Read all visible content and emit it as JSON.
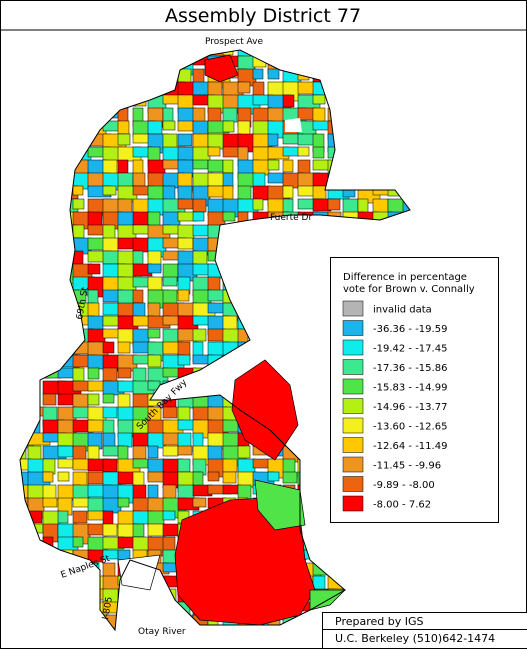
{
  "title": "Assembly District 77",
  "streets": [
    {
      "name": "Prospect Ave"
    },
    {
      "name": "Fuerte Dr"
    },
    {
      "name": "69th St"
    },
    {
      "name": "South Bay Fwy"
    },
    {
      "name": "E Naples St"
    },
    {
      "name": "I-805"
    },
    {
      "name": "Otay River"
    }
  ],
  "legend": {
    "title": [
      "Difference in percentage",
      "vote for Brown v. Connally"
    ],
    "items": [
      {
        "label": "invalid data",
        "color": "#b4b4b4"
      },
      {
        "label": "-36.36  -  -19.59",
        "color": "#1ab4ec"
      },
      {
        "label": "-19.42  -  -17.45",
        "color": "#10ecec"
      },
      {
        "label": "-17.36  -  -15.86",
        "color": "#3ce890"
      },
      {
        "label": "-15.83  -  -14.99",
        "color": "#50e448"
      },
      {
        "label": "-14.96  -  -13.77",
        "color": "#b4f014"
      },
      {
        "label": "-13.60  -  -12.65",
        "color": "#f4f01c"
      },
      {
        "label": "-12.64  -  -11.49",
        "color": "#ffc800"
      },
      {
        "label": "-11.45  -  -9.96",
        "color": "#f09420"
      },
      {
        "label": "-9.89  -  -8.00",
        "color": "#ec6410"
      },
      {
        "label": "-8.00  -  7.62",
        "color": "#ff0000"
      }
    ]
  },
  "footer": [
    "Prepared by IGS",
    "U.C. Berkeley (510)642-1474"
  ]
}
